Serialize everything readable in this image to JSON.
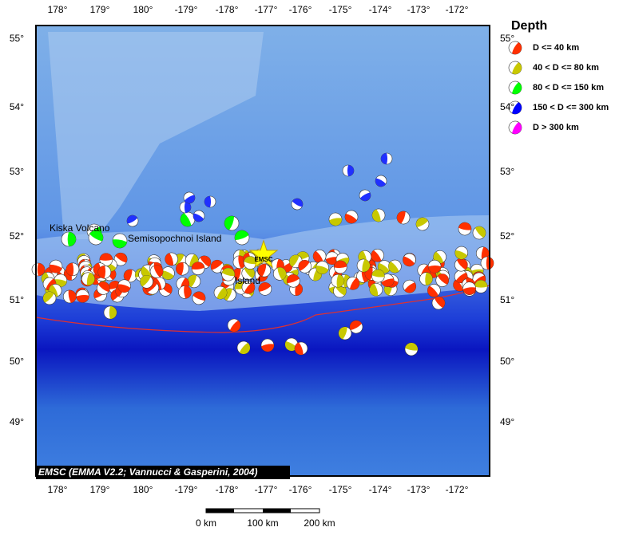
{
  "map": {
    "lon_labels": [
      "178°",
      "179°",
      "180°",
      "-179°",
      "-178°",
      "-177°",
      "-176°",
      "-175°",
      "-174°",
      "-173°",
      "-172°"
    ],
    "lat_labels": [
      "55°",
      "54°",
      "53°",
      "52°",
      "51°",
      "50°",
      "49°"
    ],
    "places": [
      "Kiska Volcano",
      "Semisopochnoi Island",
      "Island"
    ],
    "epicenter_label": "EMSC",
    "credit": "EMSC (EMMA V2.2; Vannucci & Gasperini, 2004)",
    "scale_labels": [
      "0 km",
      "100 km",
      "200 km"
    ]
  },
  "legend": {
    "title": "Depth",
    "entries": [
      {
        "label": "D <= 40 km",
        "color": "#ff3000"
      },
      {
        "label": "40 < D <= 80 km",
        "color": "#c8c800"
      },
      {
        "label": "80 < D <= 150 km",
        "color": "#00ff00"
      },
      {
        "label": "150 < D <= 300 km",
        "color": "#0000ff"
      },
      {
        "label": "D > 300 km",
        "color": "#ff00ff"
      }
    ]
  }
}
